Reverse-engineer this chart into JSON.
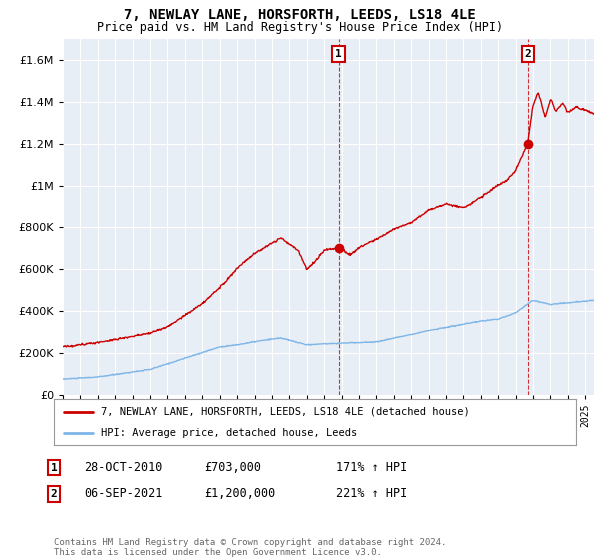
{
  "title": "7, NEWLAY LANE, HORSFORTH, LEEDS, LS18 4LE",
  "subtitle": "Price paid vs. HM Land Registry's House Price Index (HPI)",
  "hpi_label": "HPI: Average price, detached house, Leeds",
  "property_label": "7, NEWLAY LANE, HORSFORTH, LEEDS, LS18 4LE (detached house)",
  "plot_bg_color": "#e8eef6",
  "grid_color": "#ffffff",
  "hpi_color": "#7eb6e8",
  "property_color": "#cc0000",
  "ylim": [
    0,
    1700000
  ],
  "yticks": [
    0,
    200000,
    400000,
    600000,
    800000,
    1000000,
    1200000,
    1400000,
    1600000
  ],
  "footnote": "Contains HM Land Registry data © Crown copyright and database right 2024.\nThis data is licensed under the Open Government Licence v3.0.",
  "sale1_date": "28-OCT-2010",
  "sale1_price": "£703,000",
  "sale1_hpi": "171% ↑ HPI",
  "sale2_date": "06-SEP-2021",
  "sale2_price": "£1,200,000",
  "sale2_hpi": "221% ↑ HPI",
  "xmin": 1995.0,
  "xmax": 2025.5,
  "sale1_x": 2010.83,
  "sale2_x": 2021.69,
  "sale1_y": 703000,
  "sale2_y": 1200000
}
